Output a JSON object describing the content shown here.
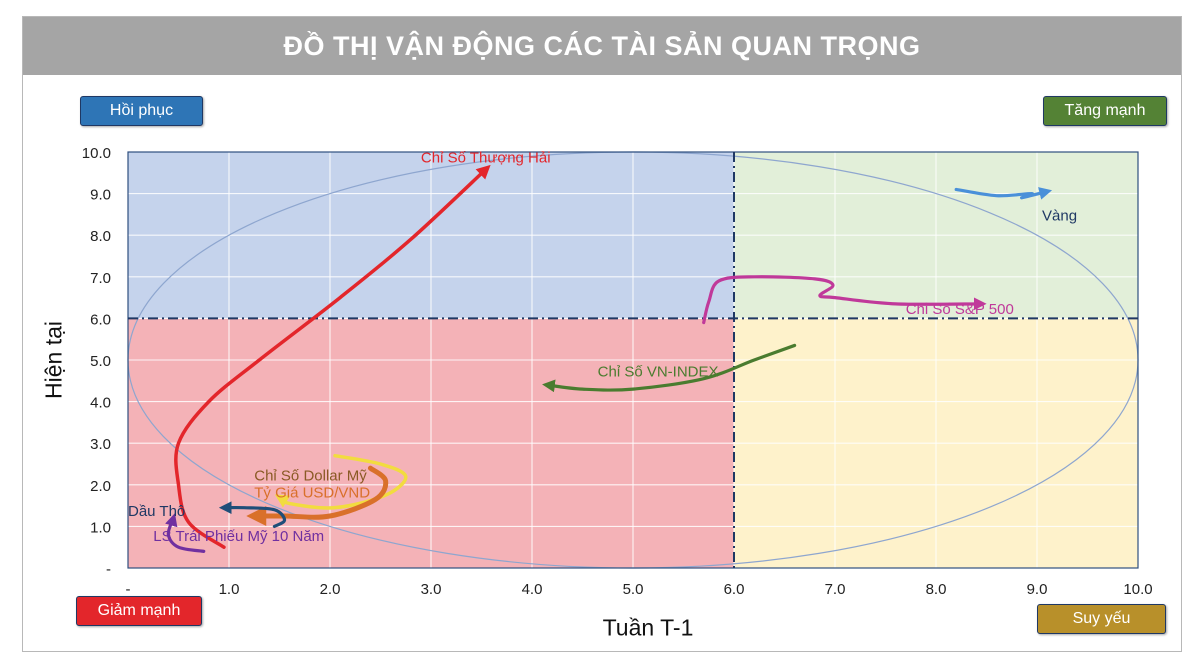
{
  "page_title": "ĐỒ THỊ VẬN ĐỘNG CÁC TÀI SẢN QUAN TRỌNG",
  "quadrants": {
    "top_left": {
      "label": "Hồi phục",
      "color": "#2e75b6"
    },
    "top_right": {
      "label": "Tăng mạnh",
      "color": "#548235"
    },
    "bottom_left": {
      "label": "Giảm mạnh",
      "color": "#e3262b"
    },
    "bottom_right": {
      "label": "Suy yếu",
      "color": "#b8902a"
    }
  },
  "chart_data": {
    "type": "line",
    "xlabel": "Tuần T-1",
    "ylabel": "Hiện tại",
    "xlim": [
      0,
      10
    ],
    "ylim": [
      0,
      10
    ],
    "x_ticks": [
      "-",
      "1.0",
      "2.0",
      "3.0",
      "4.0",
      "5.0",
      "6.0",
      "7.0",
      "8.0",
      "9.0",
      "10.0"
    ],
    "y_ticks": [
      "-",
      "1.0",
      "2.0",
      "3.0",
      "4.0",
      "5.0",
      "6.0",
      "7.0",
      "8.0",
      "9.0",
      "10.0"
    ],
    "grid": true,
    "divider": {
      "x": 6.0,
      "y": 6.0
    },
    "region_colors": {
      "top_left": "#c5d3ec",
      "top_right": "#e2efd9",
      "bottom_left": "#f4b2b7",
      "bottom_right": "#fef2cb"
    },
    "series": [
      {
        "name": "Chỉ Số Thượng Hải",
        "color": "#e3262b",
        "points": [
          [
            0.95,
            0.5
          ],
          [
            0.6,
            1.1
          ],
          [
            0.5,
            2.0
          ],
          [
            0.5,
            3.0
          ],
          [
            0.8,
            4.0
          ],
          [
            1.3,
            5.0
          ],
          [
            2.1,
            6.5
          ],
          [
            2.8,
            7.9
          ],
          [
            3.55,
            9.6
          ]
        ]
      },
      {
        "name": "Vàng",
        "color": "#4a90d9",
        "points": [
          [
            8.2,
            9.1
          ],
          [
            8.6,
            8.95
          ],
          [
            8.95,
            9.0
          ],
          [
            8.85,
            8.9
          ],
          [
            9.1,
            9.05
          ]
        ]
      },
      {
        "name": "Chỉ Số S&P 500",
        "color": "#c0399a",
        "points": [
          [
            5.7,
            5.9
          ],
          [
            5.75,
            6.4
          ],
          [
            5.85,
            6.9
          ],
          [
            6.2,
            7.0
          ],
          [
            6.8,
            6.95
          ],
          [
            6.98,
            6.8
          ],
          [
            6.85,
            6.55
          ],
          [
            7.0,
            6.5
          ],
          [
            7.6,
            6.35
          ],
          [
            8.45,
            6.35
          ]
        ]
      },
      {
        "name": "Chỉ Số VN-INDEX",
        "color": "#4a7c2f",
        "points": [
          [
            6.6,
            5.35
          ],
          [
            6.2,
            5.0
          ],
          [
            5.7,
            4.55
          ],
          [
            5.0,
            4.3
          ],
          [
            4.5,
            4.3
          ],
          [
            4.15,
            4.4
          ]
        ]
      },
      {
        "name": "Chỉ Số Dollar Mỹ",
        "color": "#f2dc3f",
        "points": [
          [
            2.05,
            2.7
          ],
          [
            2.5,
            2.5
          ],
          [
            2.75,
            2.2
          ],
          [
            2.55,
            1.75
          ],
          [
            2.05,
            1.45
          ],
          [
            1.6,
            1.55
          ],
          [
            1.5,
            1.7
          ]
        ]
      },
      {
        "name": "Tỷ Giá USD/VND",
        "color": "#d9702a",
        "points": [
          [
            2.4,
            2.4
          ],
          [
            2.55,
            2.1
          ],
          [
            2.45,
            1.65
          ],
          [
            2.0,
            1.25
          ],
          [
            1.55,
            1.25
          ],
          [
            1.25,
            1.25
          ]
        ]
      },
      {
        "name": "Dầu Thô",
        "color": "#1f4e79",
        "points": [
          [
            1.45,
            1.0
          ],
          [
            1.55,
            1.15
          ],
          [
            1.45,
            1.4
          ],
          [
            1.15,
            1.45
          ],
          [
            0.95,
            1.45
          ]
        ]
      },
      {
        "name": "LS Trái Phiếu Mỹ 10 Năm",
        "color": "#7030a0",
        "points": [
          [
            0.75,
            0.4
          ],
          [
            0.5,
            0.5
          ],
          [
            0.4,
            0.8
          ],
          [
            0.45,
            1.2
          ]
        ]
      }
    ],
    "labels": [
      {
        "text": "Chỉ Số Thượng Hải",
        "color": "#e3262b",
        "x": 2.9,
        "y": 9.75
      },
      {
        "text": "Vàng",
        "color": "#1f3864",
        "x": 9.05,
        "y": 8.35
      },
      {
        "text": "Chỉ Số S&P 500",
        "color": "#c0399a",
        "x": 7.7,
        "y": 6.1
      },
      {
        "text": "Chỉ Số VN-INDEX",
        "color": "#4a7c2f",
        "x": 4.65,
        "y": 4.6
      },
      {
        "text": "Chỉ Số Dollar Mỹ",
        "color": "#8a5a25",
        "x": 1.25,
        "y": 2.1
      },
      {
        "text": "Tỷ Giá USD/VND",
        "color": "#d9702a",
        "x": 1.25,
        "y": 1.7
      },
      {
        "text": "Dầu Thô",
        "color": "#1f3864",
        "x": 0.0,
        "y": 1.25
      },
      {
        "text": "LS Trái Phiếu Mỹ 10 Năm",
        "color": "#7030a0",
        "x": 0.25,
        "y": 0.65
      }
    ]
  }
}
